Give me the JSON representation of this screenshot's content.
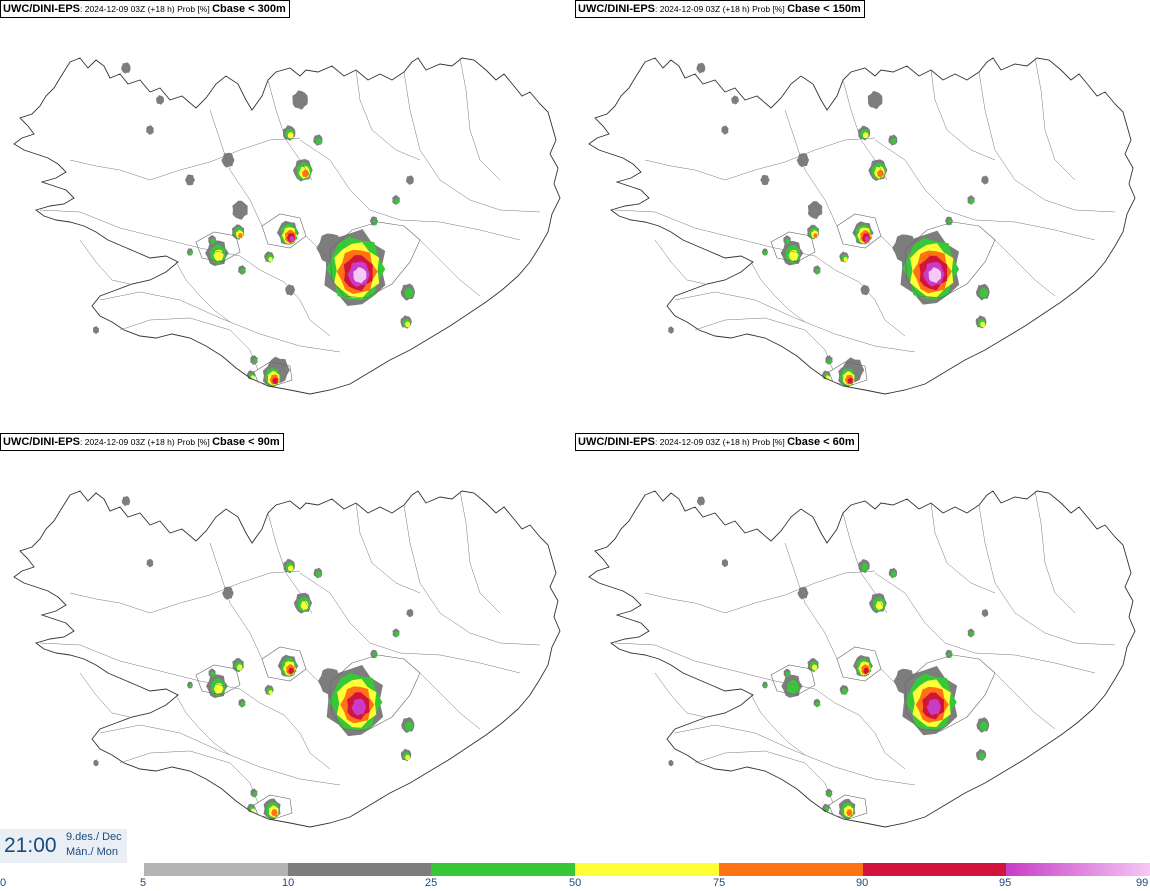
{
  "panels": [
    {
      "source": "UWC/DINI-EPS",
      "meta": ": 2024-12-09 03Z (+18 h) Prob [%] ",
      "field": "Cbase < 300m",
      "intensity": 1.0
    },
    {
      "source": "UWC/DINI-EPS",
      "meta": ": 2024-12-09 03Z (+18 h) Prob [%] ",
      "field": "Cbase < 150m",
      "intensity": 0.85
    },
    {
      "source": "UWC/DINI-EPS",
      "meta": ": 2024-12-09 03Z (+18 h) Prob [%] ",
      "field": "Cbase < 90m",
      "intensity": 0.7
    },
    {
      "source": "UWC/DINI-EPS",
      "meta": ": 2024-12-09 03Z (+18 h) Prob [%] ",
      "field": "Cbase < 60m",
      "intensity": 0.6
    }
  ],
  "valid_time": {
    "time": "21:00",
    "date_line1": "9.des./ Dec",
    "date_line2": "Mán./ Mon"
  },
  "legend": {
    "thresholds": [
      "0",
      "5",
      "10",
      "25",
      "50",
      "75",
      "90",
      "95",
      "99"
    ],
    "colors": [
      "#b4b4b4",
      "#7d7d7d",
      "#37c837",
      "#ffff37",
      "#ff7314",
      "#d2143c",
      "#c83cc8"
    ],
    "gradient_end": "#f5c8f5"
  }
}
